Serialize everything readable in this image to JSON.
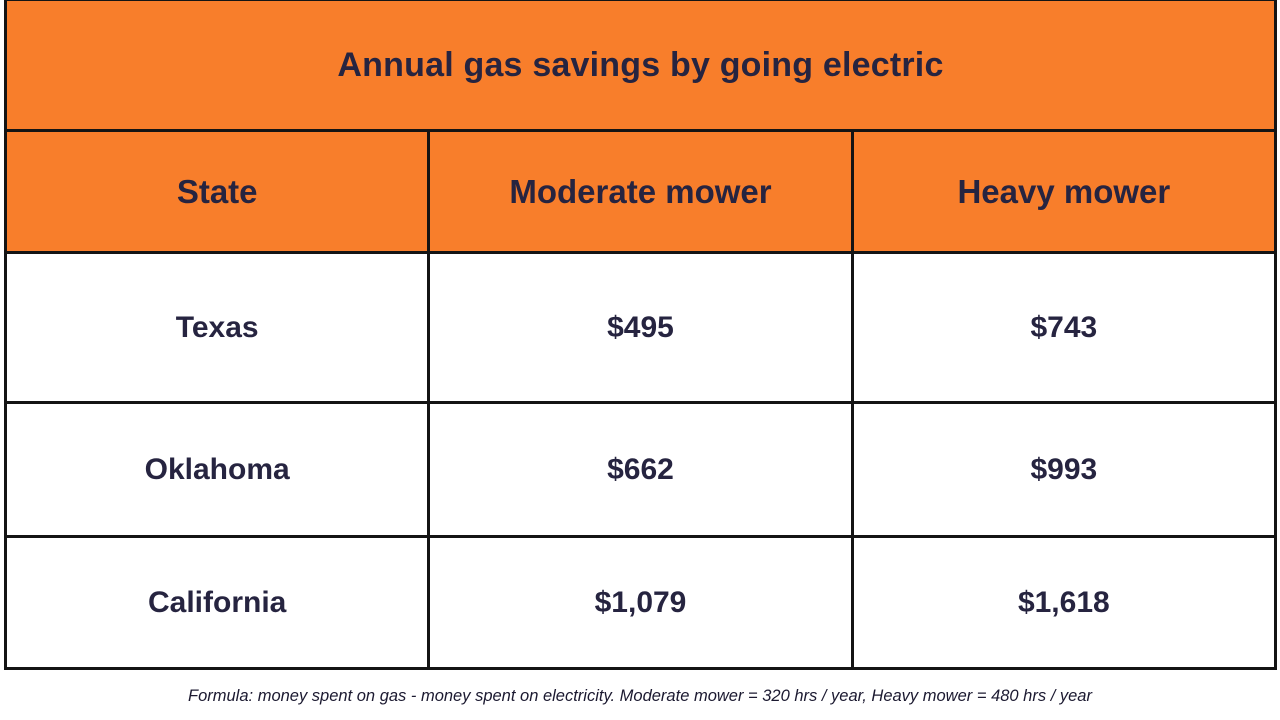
{
  "chart_data": {
    "type": "table",
    "title": "Annual gas savings by going electric",
    "columns": [
      "State",
      "Moderate mower",
      "Heavy mower"
    ],
    "rows": [
      [
        "Texas",
        495,
        743
      ],
      [
        "Oklahoma",
        662,
        993
      ],
      [
        "California",
        1079,
        1618
      ]
    ],
    "footnote": "Formula: money spent on gas - money spent on electricity. Moderate mower = 320 hrs / year, Heavy mower = 480 hrs / year"
  },
  "table": {
    "title": "Annual gas savings by going electric",
    "columns": [
      "State",
      "Moderate mower",
      "Heavy mower"
    ],
    "rows": [
      {
        "state": "Texas",
        "moderate": "$495",
        "heavy": "$743"
      },
      {
        "state": "Oklahoma",
        "moderate": "$662",
        "heavy": "$993"
      },
      {
        "state": "California",
        "moderate": "$1,079",
        "heavy": "$1,618"
      }
    ]
  },
  "footnote": "Formula: money spent on gas - money spent on electricity. Moderate mower = 320 hrs / year, Heavy mower = 480 hrs / year",
  "colors": {
    "accent_orange": "#f87e2b",
    "text_dark": "#262440",
    "border": "#141414",
    "background": "#ffffff"
  }
}
